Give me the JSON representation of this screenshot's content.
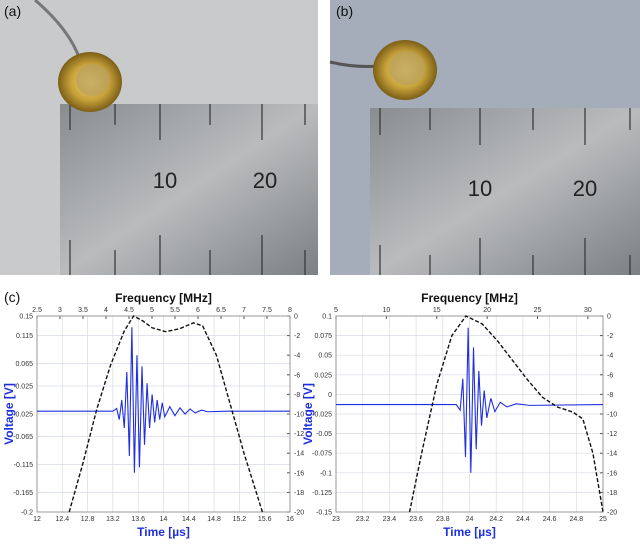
{
  "panels": [
    "(a)",
    "(b)",
    "(c)"
  ],
  "photos": [
    {
      "ruler_labels": [
        "10",
        "20"
      ]
    },
    {
      "ruler_labels": [
        "10",
        "20"
      ]
    }
  ],
  "chart_data": [
    {
      "type": "line",
      "x2label": "Frequency [MHz]",
      "xlabel": "Time [µs]",
      "ylabel": "Voltage [V]",
      "xlim": [
        12,
        16
      ],
      "xticks": [
        12,
        12.4,
        12.8,
        13.2,
        13.6,
        14,
        14.4,
        14.8,
        15.2,
        15.6,
        16
      ],
      "x2lim": [
        2.5,
        8
      ],
      "x2ticks": [
        2.5,
        3,
        3.5,
        4,
        4.5,
        5,
        5.5,
        6,
        6.5,
        7,
        7.5,
        8
      ],
      "ylim": [
        -0.2,
        0.15
      ],
      "yticks": [
        0.15,
        0.115,
        0.065,
        0.025,
        -0.025,
        -0.065,
        -0.115,
        -0.165,
        -0.2
      ],
      "y2lim": [
        -20,
        0
      ],
      "y2ticks": [
        0,
        -2,
        -4,
        -6,
        -8,
        -10,
        -12,
        -14,
        -16,
        -18,
        -20
      ],
      "grid": true,
      "series": [
        {
          "color": "#1f2fe0",
          "dash": false,
          "x": [
            12,
            13.2,
            13.26,
            13.3,
            13.34,
            13.38,
            13.42,
            13.46,
            13.5,
            13.54,
            13.58,
            13.62,
            13.66,
            13.7,
            13.74,
            13.78,
            13.82,
            13.86,
            13.9,
            13.94,
            13.98,
            14.02,
            14.1,
            14.18,
            14.26,
            14.34,
            14.42,
            14.5,
            14.6,
            14.7,
            15,
            16
          ],
          "values": [
            -0.02,
            -0.02,
            -0.015,
            -0.035,
            0.0,
            -0.05,
            0.05,
            -0.1,
            0.13,
            -0.13,
            0.08,
            -0.12,
            0.06,
            -0.08,
            0.03,
            -0.05,
            0.01,
            -0.04,
            0.0,
            -0.035,
            -0.005,
            -0.03,
            -0.012,
            -0.028,
            -0.014,
            -0.025,
            -0.016,
            -0.023,
            -0.018,
            -0.021,
            -0.02,
            -0.02
          ]
        },
        {
          "color": "#111111",
          "dash": true,
          "axis": "y2",
          "xaxis": "x2",
          "x": [
            3.2,
            3.5,
            3.8,
            4.1,
            4.4,
            4.6,
            4.8,
            5.0,
            5.3,
            5.6,
            5.9,
            6.1,
            6.4,
            6.7,
            7.0,
            7.4
          ],
          "values": [
            -20,
            -15,
            -9.5,
            -5,
            -1.5,
            0,
            -0.5,
            -1.2,
            -1.6,
            -1.3,
            -0.7,
            -1,
            -4,
            -9,
            -14,
            -20
          ]
        }
      ]
    },
    {
      "type": "line",
      "x2label": "Frequency [MHz]",
      "xlabel": "Time [µs]",
      "ylabel": "Voltage [V]",
      "xlim": [
        23,
        25
      ],
      "xticks": [
        23,
        23.2,
        23.4,
        23.6,
        23.8,
        24,
        24.2,
        24.4,
        24.6,
        24.8,
        25
      ],
      "x2lim": [
        5,
        31.5
      ],
      "x2ticks": [
        5,
        10,
        15,
        20,
        25,
        30
      ],
      "ylim": [
        -0.15,
        0.1
      ],
      "yticks": [
        0.1,
        0.075,
        0.05,
        0.025,
        0,
        -0.025,
        -0.05,
        -0.075,
        -0.1,
        -0.125,
        -0.15
      ],
      "y2lim": [
        -20,
        0
      ],
      "y2ticks": [
        0,
        -2,
        -4,
        -6,
        -8,
        -10,
        -12,
        -14,
        -16,
        -18,
        -20
      ],
      "grid": true,
      "series": [
        {
          "color": "#1f2fe0",
          "dash": false,
          "x": [
            23,
            23.9,
            23.93,
            23.95,
            23.97,
            23.99,
            24.01,
            24.03,
            24.05,
            24.07,
            24.09,
            24.11,
            24.13,
            24.16,
            24.19,
            24.23,
            24.28,
            24.35,
            24.45,
            25
          ],
          "values": [
            -0.013,
            -0.013,
            -0.02,
            0.02,
            -0.08,
            0.085,
            -0.1,
            0.06,
            -0.07,
            0.03,
            -0.04,
            0.005,
            -0.03,
            -0.005,
            -0.022,
            -0.01,
            -0.016,
            -0.012,
            -0.014,
            -0.013
          ]
        },
        {
          "color": "#111111",
          "dash": true,
          "axis": "y2",
          "xaxis": "x2",
          "x": [
            12.3,
            13.5,
            15,
            16.5,
            17.9,
            19.5,
            21,
            22.5,
            24,
            25.5,
            27,
            28.5,
            29.5,
            30.5,
            31.5
          ],
          "values": [
            -20,
            -14,
            -7,
            -2,
            0,
            -0.8,
            -2.5,
            -4.5,
            -6.5,
            -8.3,
            -9.3,
            -9.8,
            -10.5,
            -14,
            -20
          ]
        }
      ]
    }
  ]
}
